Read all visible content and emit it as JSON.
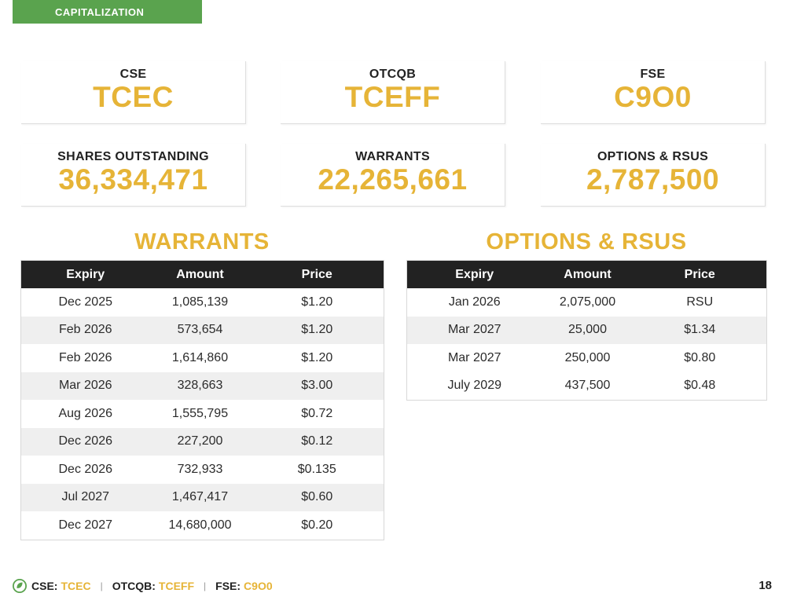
{
  "section": {
    "label": "CAPITALIZATION"
  },
  "cards": [
    {
      "label": "CSE",
      "value": "TCEC"
    },
    {
      "label": "OTCQB",
      "value": "TCEFF"
    },
    {
      "label": "FSE",
      "value": "C9O0"
    },
    {
      "label": "SHARES OUTSTANDING",
      "value": "36,334,471"
    },
    {
      "label": "WARRANTS",
      "value": "22,265,661"
    },
    {
      "label": "OPTIONS & RSUS",
      "value": "2,787,500"
    }
  ],
  "warrants": {
    "title": "WARRANTS",
    "headers": [
      "Expiry",
      "Amount",
      "Price"
    ],
    "rows": [
      [
        "Dec 2025",
        "1,085,139",
        "$1.20"
      ],
      [
        "Feb 2026",
        "573,654",
        "$1.20"
      ],
      [
        "Feb 2026",
        "1,614,860",
        "$1.20"
      ],
      [
        "Mar 2026",
        "328,663",
        "$3.00"
      ],
      [
        "Aug 2026",
        "1,555,795",
        "$0.72"
      ],
      [
        "Dec 2026",
        "227,200",
        "$0.12"
      ],
      [
        "Dec 2026",
        "732,933",
        "$0.135"
      ],
      [
        "Jul 2027",
        "1,467,417",
        "$0.60"
      ],
      [
        "Dec 2027",
        "14,680,000",
        "$0.20"
      ]
    ]
  },
  "options": {
    "title": "OPTIONS & RSUS",
    "headers": [
      "Expiry",
      "Amount",
      "Price"
    ],
    "rows": [
      [
        "Jan 2026",
        "2,075,000",
        "RSU"
      ],
      [
        "Mar 2027",
        "25,000",
        "$1.34"
      ],
      [
        "Mar 2027",
        "250,000",
        "$0.80"
      ],
      [
        "July 2029",
        "437,500",
        "$0.48"
      ]
    ]
  },
  "footer": {
    "items": [
      {
        "label": "CSE:",
        "ticker": "TCEC"
      },
      {
        "label": "OTCQB:",
        "ticker": "TCEFF"
      },
      {
        "label": "FSE:",
        "ticker": "C9O0"
      }
    ],
    "separator": "|",
    "page_number": "18"
  },
  "colors": {
    "accent": "#e6b437",
    "brand_green": "#5aa34e",
    "header_dark": "#222222",
    "stripe": "#efefef"
  }
}
